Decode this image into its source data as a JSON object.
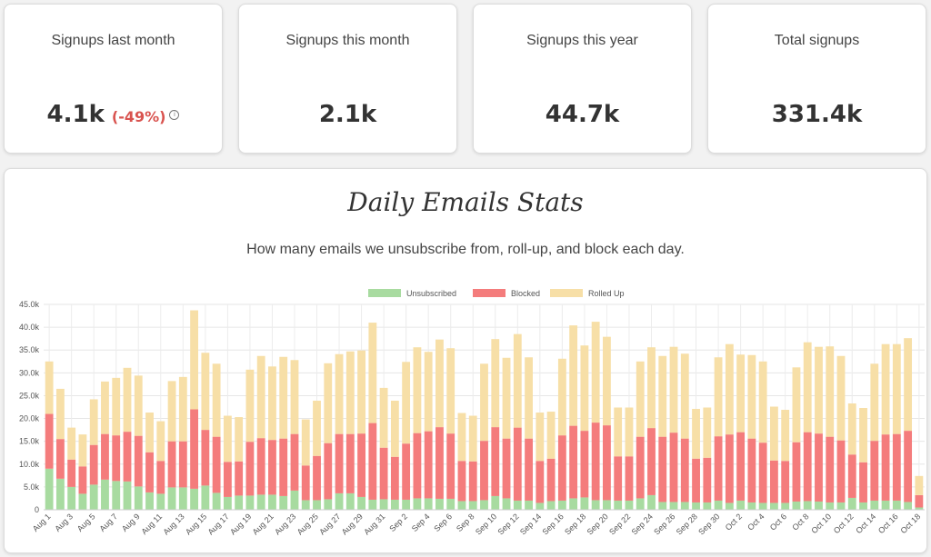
{
  "stats": [
    {
      "label": "Signups last month",
      "value": "4.1k",
      "delta": "(-49%)",
      "info_icon": "info-icon"
    },
    {
      "label": "Signups this month",
      "value": "2.1k"
    },
    {
      "label": "Signups this year",
      "value": "44.7k"
    },
    {
      "label": "Total signups",
      "value": "331.4k"
    }
  ],
  "chart_data": {
    "type": "bar",
    "stacked": true,
    "title": "Daily Emails Stats",
    "subtitle": "How many emails we unsubscribe from, roll-up, and block each day.",
    "ylim": [
      0,
      45000
    ],
    "yticks": [
      "0",
      "5.0k",
      "10.0k",
      "15.0k",
      "20.0k",
      "25.0k",
      "30.0k",
      "35.0k",
      "40.0k",
      "45.0k"
    ],
    "legend_position": "top-center",
    "grid": true,
    "categories": [
      "Aug 1",
      "Aug 2",
      "Aug 3",
      "Aug 4",
      "Aug 5",
      "Aug 6",
      "Aug 7",
      "Aug 8",
      "Aug 9",
      "Aug 10",
      "Aug 11",
      "Aug 12",
      "Aug 13",
      "Aug 14",
      "Aug 15",
      "Aug 16",
      "Aug 17",
      "Aug 18",
      "Aug 19",
      "Aug 20",
      "Aug 21",
      "Aug 22",
      "Aug 23",
      "Aug 24",
      "Aug 25",
      "Aug 26",
      "Aug 27",
      "Aug 28",
      "Aug 29",
      "Aug 30",
      "Aug 31",
      "Sep 1",
      "Sep 2",
      "Sep 3",
      "Sep 4",
      "Sep 5",
      "Sep 6",
      "Sep 7",
      "Sep 8",
      "Sep 9",
      "Sep 10",
      "Sep 11",
      "Sep 12",
      "Sep 13",
      "Sep 14",
      "Sep 15",
      "Sep 16",
      "Sep 17",
      "Sep 18",
      "Sep 19",
      "Sep 20",
      "Sep 21",
      "Sep 22",
      "Sep 23",
      "Sep 24",
      "Sep 25",
      "Sep 26",
      "Sep 27",
      "Sep 28",
      "Sep 29",
      "Sep 30",
      "Oct 1",
      "Oct 2",
      "Oct 3",
      "Oct 4",
      "Oct 5",
      "Oct 6",
      "Oct 7",
      "Oct 8",
      "Oct 9",
      "Oct 10",
      "Oct 11",
      "Oct 12",
      "Oct 13",
      "Oct 14",
      "Oct 15",
      "Oct 16",
      "Oct 17",
      "Oct 18"
    ],
    "x_tick_labels": [
      "Aug 1",
      "Aug 3",
      "Aug 5",
      "Aug 7",
      "Aug 9",
      "Aug 11",
      "Aug 13",
      "Aug 15",
      "Aug 17",
      "Aug 19",
      "Aug 21",
      "Aug 23",
      "Aug 25",
      "Aug 27",
      "Aug 29",
      "Aug 31",
      "Sep 2",
      "Sep 4",
      "Sep 6",
      "Sep 8",
      "Sep 10",
      "Sep 12",
      "Sep 14",
      "Sep 16",
      "Sep 18",
      "Sep 20",
      "Sep 22",
      "Sep 24",
      "Sep 26",
      "Sep 28",
      "Sep 30",
      "Oct 2",
      "Oct 4",
      "Oct 6",
      "Oct 8",
      "Oct 10",
      "Oct 12",
      "Oct 14",
      "Oct 16",
      "Oct 18"
    ],
    "series": [
      {
        "name": "Unsubscribed",
        "color": "#a8dba0",
        "values": [
          9000,
          6800,
          5000,
          3500,
          5500,
          6600,
          6300,
          6200,
          5100,
          3800,
          3500,
          4900,
          4900,
          4600,
          5300,
          3700,
          2800,
          3100,
          3100,
          3300,
          3300,
          3000,
          4200,
          2100,
          2100,
          2300,
          3600,
          3600,
          2800,
          2200,
          2300,
          2200,
          2200,
          2500,
          2500,
          2400,
          2400,
          1900,
          1900,
          2100,
          3000,
          2500,
          2000,
          2000,
          1500,
          1900,
          2000,
          2500,
          2700,
          2100,
          2100,
          2000,
          2000,
          2500,
          3200,
          1700,
          1700,
          1700,
          1600,
          1600,
          2000,
          1500,
          2000,
          1600,
          1500,
          1500,
          1500,
          1800,
          1900,
          1800,
          1600,
          1600,
          2600,
          1600,
          2000,
          2000,
          2000,
          1700,
          500
        ]
      },
      {
        "name": "Blocked",
        "color": "#f47c7c",
        "values": [
          12000,
          8700,
          6000,
          6000,
          8700,
          10000,
          10000,
          10900,
          11100,
          8800,
          7200,
          10100,
          10100,
          17400,
          12200,
          12300,
          7700,
          7500,
          11800,
          12400,
          12000,
          12600,
          12400,
          7600,
          9700,
          12300,
          13000,
          13000,
          13900,
          16800,
          11300,
          9400,
          12300,
          14300,
          14700,
          15700,
          14300,
          8800,
          8700,
          13000,
          15100,
          13100,
          16000,
          13600,
          9200,
          9300,
          14300,
          15900,
          14600,
          17000,
          16400,
          9700,
          9700,
          13500,
          14700,
          14300,
          15200,
          13900,
          9600,
          9800,
          14100,
          15000,
          15000,
          14000,
          13200,
          9300,
          9200,
          13000,
          15100,
          14900,
          14400,
          13600,
          9500,
          8800,
          13100,
          14500,
          14600,
          15600,
          2700
        ]
      },
      {
        "name": "Rolled Up",
        "color": "#f7dfa7",
        "values": [
          11500,
          11000,
          7000,
          7000,
          10000,
          11500,
          12600,
          14000,
          13200,
          8700,
          8700,
          13200,
          14100,
          21700,
          16900,
          16000,
          10100,
          9700,
          15800,
          18000,
          16100,
          17900,
          16200,
          10100,
          12100,
          17500,
          17500,
          18100,
          18200,
          22000,
          13100,
          12300,
          17900,
          18800,
          17400,
          19200,
          18700,
          10500,
          10000,
          16900,
          19300,
          17700,
          20500,
          17800,
          10600,
          10300,
          16800,
          22000,
          18700,
          22100,
          19400,
          10700,
          10700,
          16500,
          17700,
          17700,
          18800,
          18600,
          10900,
          11000,
          17300,
          19800,
          17000,
          18300,
          17800,
          11800,
          11200,
          16400,
          19700,
          19000,
          19800,
          18500,
          11200,
          11900,
          16900,
          19800,
          19700,
          20300,
          4200
        ]
      }
    ]
  }
}
